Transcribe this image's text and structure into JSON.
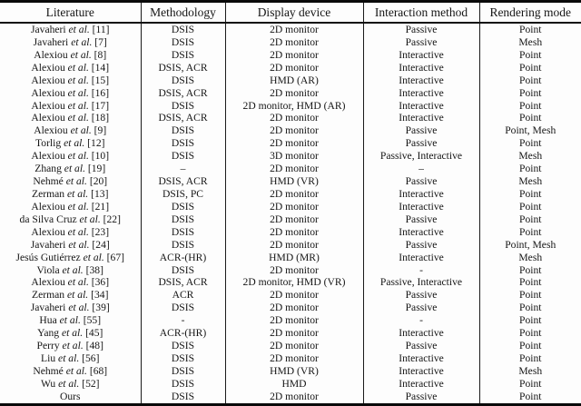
{
  "table": {
    "columns": [
      "Literature",
      "Methodology",
      "Display device",
      "Interaction method",
      "Rendering mode"
    ],
    "rows": [
      {
        "name": "Javaheri",
        "etal": "et al.",
        "ref": "[11]",
        "methodology": "DSIS",
        "display": "2D monitor",
        "interaction": "Passive",
        "rendering": "Point"
      },
      {
        "name": "Javaheri",
        "etal": "et al.",
        "ref": "[7]",
        "methodology": "DSIS",
        "display": "2D monitor",
        "interaction": "Passive",
        "rendering": "Mesh"
      },
      {
        "name": "Alexiou",
        "etal": "et al.",
        "ref": "[8]",
        "methodology": "DSIS",
        "display": "2D monitor",
        "interaction": "Interactive",
        "rendering": "Point"
      },
      {
        "name": "Alexiou",
        "etal": "et al.",
        "ref": "[14]",
        "methodology": "DSIS, ACR",
        "display": "2D monitor",
        "interaction": "Interactive",
        "rendering": "Point"
      },
      {
        "name": "Alexiou",
        "etal": "et al.",
        "ref": "[15]",
        "methodology": "DSIS",
        "display": "HMD (AR)",
        "interaction": "Interactive",
        "rendering": "Point"
      },
      {
        "name": "Alexiou",
        "etal": "et al.",
        "ref": "[16]",
        "methodology": "DSIS, ACR",
        "display": "2D monitor",
        "interaction": "Interactive",
        "rendering": "Point"
      },
      {
        "name": "Alexiou",
        "etal": "et al.",
        "ref": "[17]",
        "methodology": "DSIS",
        "display": "2D monitor, HMD (AR)",
        "interaction": "Interactive",
        "rendering": "Point"
      },
      {
        "name": "Alexiou",
        "etal": "et al.",
        "ref": "[18]",
        "methodology": "DSIS, ACR",
        "display": "2D monitor",
        "interaction": "Interactive",
        "rendering": "Point"
      },
      {
        "name": "Alexiou",
        "etal": "et al.",
        "ref": "[9]",
        "methodology": "DSIS",
        "display": "2D monitor",
        "interaction": "Passive",
        "rendering": "Point, Mesh"
      },
      {
        "name": "Torlig",
        "etal": "et al.",
        "ref": "[12]",
        "methodology": "DSIS",
        "display": "2D monitor",
        "interaction": "Passive",
        "rendering": "Point"
      },
      {
        "name": "Alexiou",
        "etal": "et al.",
        "ref": "[10]",
        "methodology": "DSIS",
        "display": "3D monitor",
        "interaction": "Passive, Interactive",
        "rendering": "Mesh"
      },
      {
        "name": "Zhang",
        "etal": "et al.",
        "ref": "[19]",
        "methodology": "–",
        "display": "2D monitor",
        "interaction": "–",
        "rendering": "Point"
      },
      {
        "name": "Nehmé",
        "etal": "et al.",
        "ref": "[20]",
        "methodology": "DSIS, ACR",
        "display": "HMD (VR)",
        "interaction": "Passive",
        "rendering": "Mesh"
      },
      {
        "name": "Zerman",
        "etal": "et al.",
        "ref": "[13]",
        "methodology": "DSIS, PC",
        "display": "2D monitor",
        "interaction": "Interactive",
        "rendering": "Point"
      },
      {
        "name": "Alexiou",
        "etal": "et al.",
        "ref": "[21]",
        "methodology": "DSIS",
        "display": "2D monitor",
        "interaction": "Interactive",
        "rendering": "Point"
      },
      {
        "name": "da Silva Cruz",
        "etal": "et al.",
        "ref": "[22]",
        "methodology": "DSIS",
        "display": "2D monitor",
        "interaction": "Passive",
        "rendering": "Point"
      },
      {
        "name": "Alexiou",
        "etal": "et al.",
        "ref": "[23]",
        "methodology": "DSIS",
        "display": "2D monitor",
        "interaction": "Interactive",
        "rendering": "Point"
      },
      {
        "name": "Javaheri",
        "etal": "et al.",
        "ref": "[24]",
        "methodology": "DSIS",
        "display": "2D monitor",
        "interaction": "Passive",
        "rendering": "Point, Mesh"
      },
      {
        "name": "Jesús Gutiérrez",
        "etal": "et al.",
        "ref": "[67]",
        "methodology": "ACR-(HR)",
        "display": "HMD (MR)",
        "interaction": "Interactive",
        "rendering": "Mesh"
      },
      {
        "name": "Viola",
        "etal": "et al.",
        "ref": "[38]",
        "methodology": "DSIS",
        "display": "2D monitor",
        "interaction": "-",
        "rendering": "Point"
      },
      {
        "name": "Alexiou",
        "etal": "et al.",
        "ref": "[36]",
        "methodology": "DSIS, ACR",
        "display": "2D monitor, HMD (VR)",
        "interaction": "Passive, Interactive",
        "rendering": "Point"
      },
      {
        "name": "Zerman",
        "etal": "et al.",
        "ref": "[34]",
        "methodology": "ACR",
        "display": "2D monitor",
        "interaction": "Passive",
        "rendering": "Point"
      },
      {
        "name": "Javaheri",
        "etal": "et al.",
        "ref": "[39]",
        "methodology": "DSIS",
        "display": "2D monitor",
        "interaction": "Passive",
        "rendering": "Point"
      },
      {
        "name": "Hua",
        "etal": "et al.",
        "ref": "[55]",
        "methodology": "-",
        "display": "2D monitor",
        "interaction": "-",
        "rendering": "Point"
      },
      {
        "name": "Yang",
        "etal": "et al.",
        "ref": "[45]",
        "methodology": "ACR-(HR)",
        "display": "2D monitor",
        "interaction": "Interactive",
        "rendering": "Point"
      },
      {
        "name": "Perry",
        "etal": "et al.",
        "ref": "[48]",
        "methodology": "DSIS",
        "display": "2D monitor",
        "interaction": "Passive",
        "rendering": "Point"
      },
      {
        "name": "Liu",
        "etal": "et al.",
        "ref": "[56]",
        "methodology": "DSIS",
        "display": "2D monitor",
        "interaction": "Interactive",
        "rendering": "Point"
      },
      {
        "name": "Nehmé",
        "etal": "et al.",
        "ref": "[68]",
        "methodology": "DSIS",
        "display": "HMD (VR)",
        "interaction": "Interactive",
        "rendering": "Mesh"
      },
      {
        "name": "Wu",
        "etal": "et al.",
        "ref": "[52]",
        "methodology": "DSIS",
        "display": "HMD",
        "interaction": "Interactive",
        "rendering": "Point"
      },
      {
        "name": "Ours",
        "etal": "",
        "ref": "",
        "methodology": "DSIS",
        "display": "2D monitor",
        "interaction": "Passive",
        "rendering": "Point"
      }
    ]
  }
}
